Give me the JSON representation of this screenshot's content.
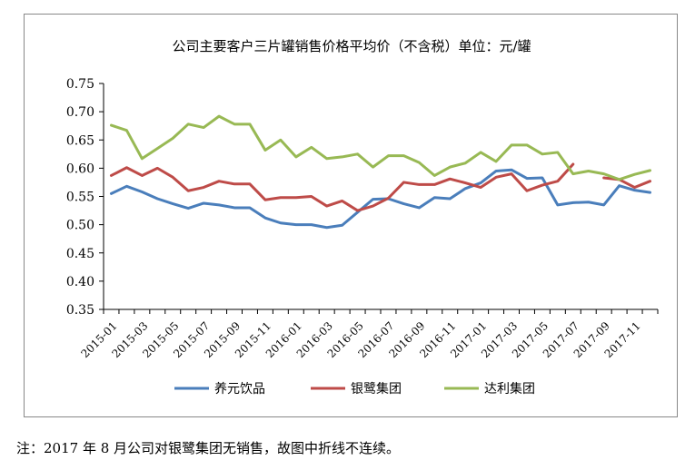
{
  "chart_data": {
    "type": "line",
    "title": "公司主要客户三片罐销售价格平均价（不含税）单位：元/罐",
    "xlabel": "",
    "ylabel": "",
    "ylim": [
      0.35,
      0.75
    ],
    "yticks": [
      "0.75",
      "0.70",
      "0.65",
      "0.60",
      "0.55",
      "0.50",
      "0.45",
      "0.40",
      "0.35"
    ],
    "grid": false,
    "legend_position": "bottom",
    "categories": [
      "2015-01",
      "2015-02",
      "2015-03",
      "2015-04",
      "2015-05",
      "2015-06",
      "2015-07",
      "2015-08",
      "2015-09",
      "2015-10",
      "2015-11",
      "2015-12",
      "2016-01",
      "2016-02",
      "2016-03",
      "2016-04",
      "2016-05",
      "2016-06",
      "2016-07",
      "2016-08",
      "2016-09",
      "2016-10",
      "2016-11",
      "2016-12",
      "2017-01",
      "2017-02",
      "2017-03",
      "2017-04",
      "2017-05",
      "2017-06",
      "2017-07",
      "2017-08",
      "2017-09",
      "2017-10",
      "2017-11",
      "2017-12"
    ],
    "xtick_labels": [
      "2015-01",
      "2015-03",
      "2015-05",
      "2015-07",
      "2015-09",
      "2015-11",
      "2016-01",
      "2016-03",
      "2016-05",
      "2016-07",
      "2016-09",
      "2016-11",
      "2017-01",
      "2017-03",
      "2017-05",
      "2017-07",
      "2017-09",
      "2017-11"
    ],
    "series": [
      {
        "name": "养元饮品",
        "color": "#4a7ebb",
        "values": [
          0.555,
          0.568,
          0.558,
          0.546,
          0.537,
          0.529,
          0.538,
          0.535,
          0.53,
          0.53,
          0.512,
          0.503,
          0.5,
          0.5,
          0.495,
          0.499,
          0.522,
          0.545,
          0.546,
          0.537,
          0.53,
          0.548,
          0.546,
          0.564,
          0.574,
          0.595,
          0.597,
          0.582,
          0.583,
          0.535,
          0.539,
          0.54,
          0.535,
          0.569,
          0.561,
          0.557
        ]
      },
      {
        "name": "银鹭集团",
        "color": "#be4b48",
        "values": [
          0.587,
          0.601,
          0.587,
          0.6,
          0.584,
          0.56,
          0.566,
          0.577,
          0.572,
          0.572,
          0.544,
          0.548,
          0.548,
          0.55,
          0.533,
          0.542,
          0.525,
          0.533,
          0.547,
          0.575,
          0.571,
          0.571,
          0.581,
          0.574,
          0.566,
          0.584,
          0.59,
          0.56,
          0.57,
          0.577,
          0.607,
          null,
          0.583,
          0.58,
          0.566,
          0.577
        ]
      },
      {
        "name": "达利集团",
        "color": "#98b954",
        "values": [
          0.676,
          0.667,
          0.617,
          0.635,
          0.653,
          0.678,
          0.672,
          0.692,
          0.678,
          0.678,
          0.632,
          0.65,
          0.62,
          0.637,
          0.617,
          0.62,
          0.625,
          0.602,
          0.622,
          0.622,
          0.61,
          0.587,
          0.602,
          0.609,
          0.628,
          0.612,
          0.641,
          0.641,
          0.625,
          0.628,
          0.59,
          0.595,
          0.59,
          0.58,
          0.589,
          0.596
        ]
      }
    ]
  },
  "note": "注：2017 年 8 月公司对银鹭集团无销售，故图中折线不连续。"
}
